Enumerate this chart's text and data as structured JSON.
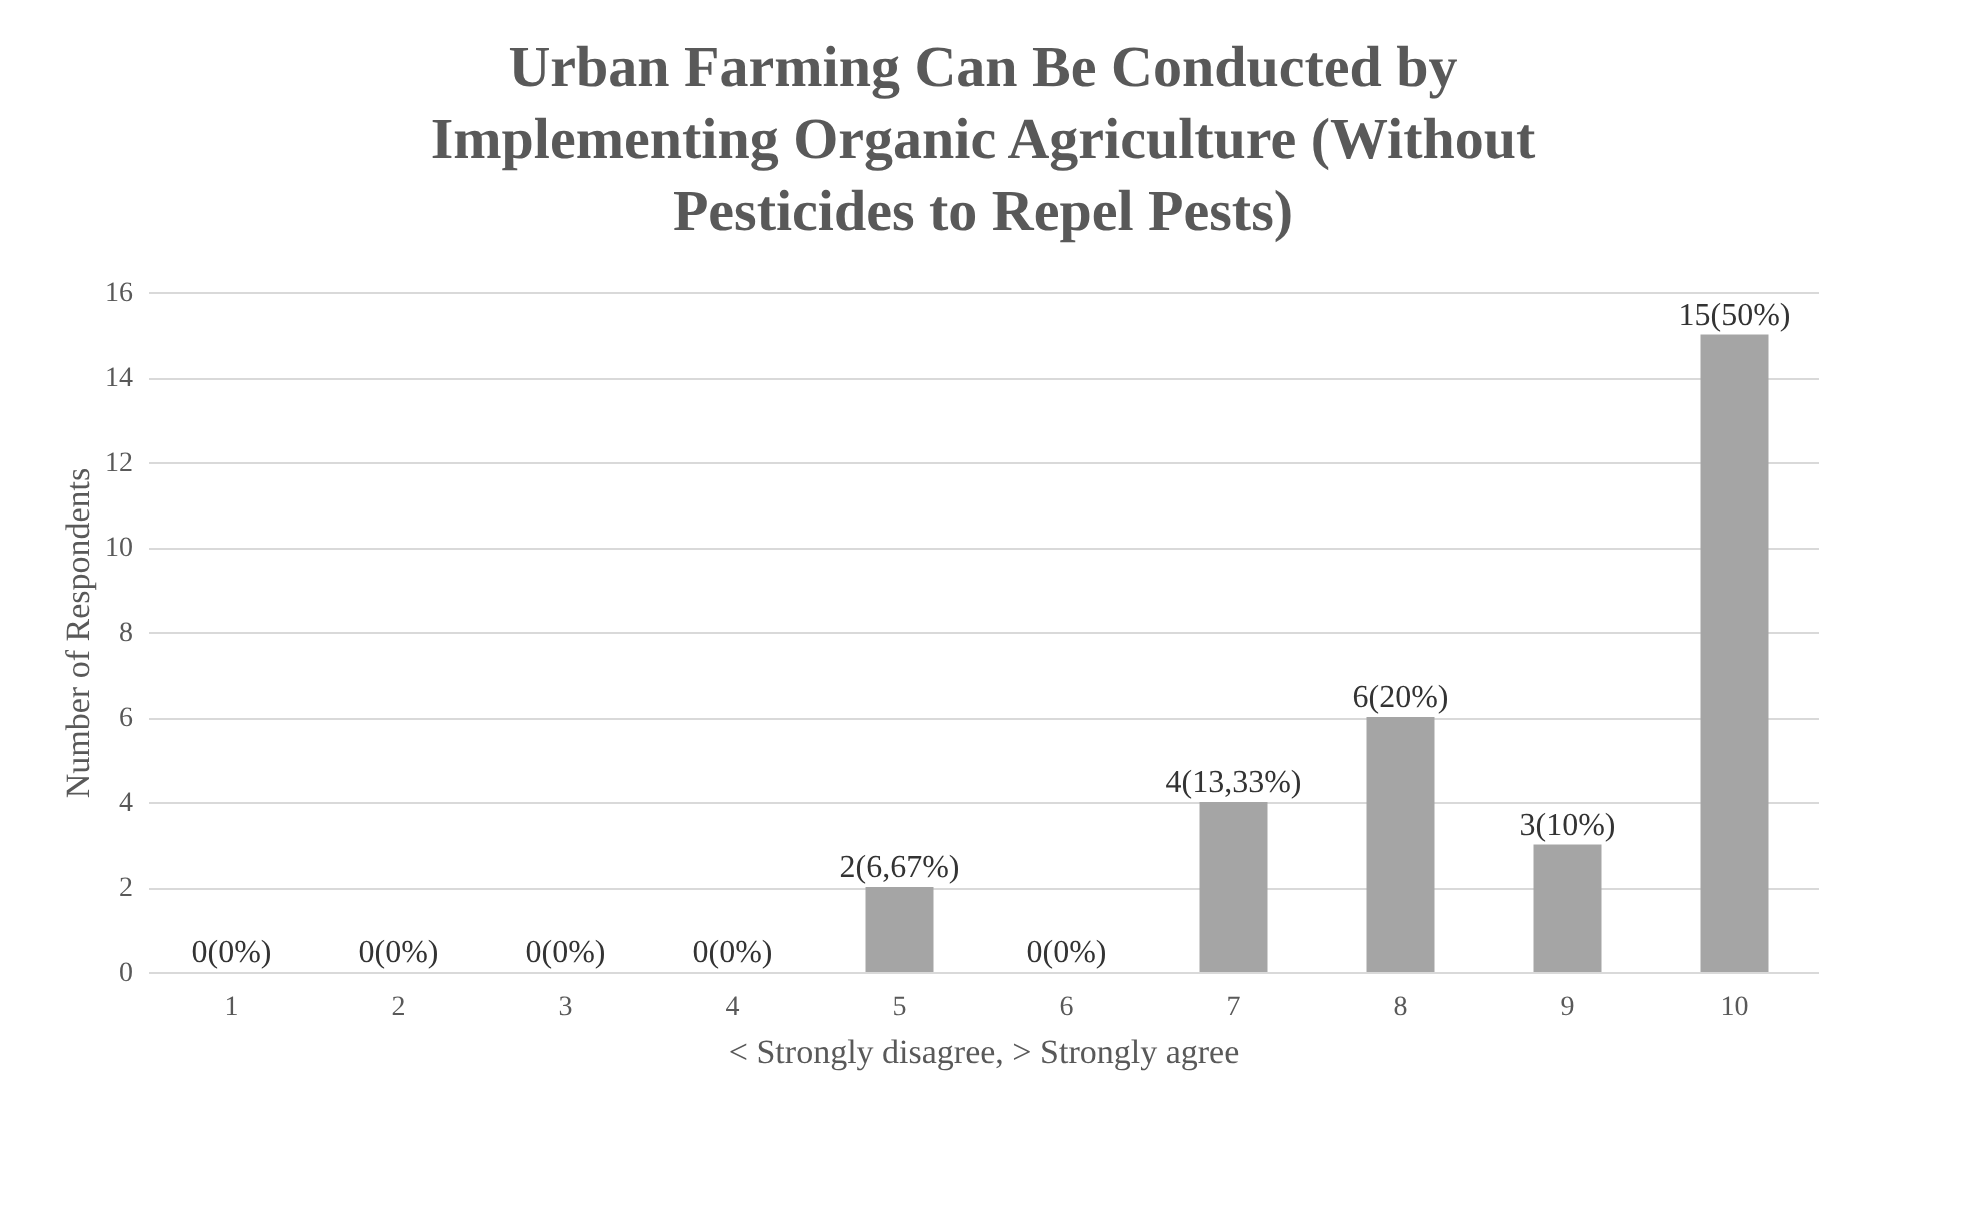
{
  "chart_data": {
    "type": "bar",
    "title": "Urban Farming Can Be Conducted by Implementing Organic Agriculture (Without Pesticides to Repel Pests)",
    "xlabel": "< Strongly disagree, > Strongly agree",
    "ylabel": "Number of Respondents",
    "categories": [
      "1",
      "2",
      "3",
      "4",
      "5",
      "6",
      "7",
      "8",
      "9",
      "10"
    ],
    "values": [
      0,
      0,
      0,
      0,
      2,
      0,
      4,
      6,
      3,
      15
    ],
    "value_labels": [
      "0(0%)",
      "0(0%)",
      "0(0%)",
      "0(0%)",
      "2(6,67%)",
      "0(0%)",
      "4(13,33%)",
      "6(20%)",
      "3(10%)",
      "15(50%)"
    ],
    "color": "#a5a5a5",
    "ylim": [
      0,
      16
    ],
    "yticks": [
      0,
      2,
      4,
      6,
      8,
      10,
      12,
      14,
      16
    ],
    "grid": "y"
  }
}
